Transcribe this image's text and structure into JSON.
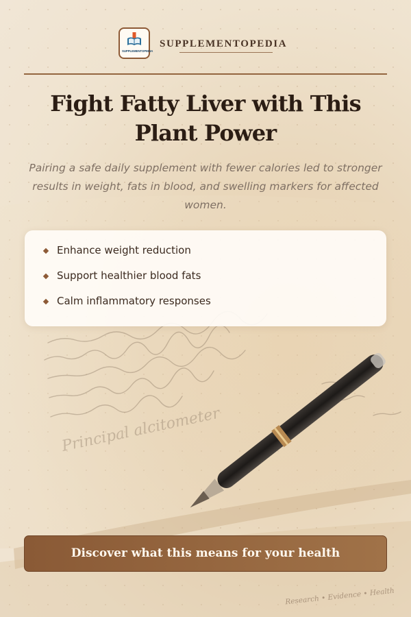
{
  "brand": {
    "name": "SUPPLEMENTOPEDIA",
    "logo_text": "SUPPLEMENTOPEDIA"
  },
  "headline": "Fight Fatty Liver with This Plant Power",
  "subtitle": "Pairing a safe daily supplement with fewer calories led to stronger results in weight, fats in blood, and swelling markers for affected women.",
  "benefits": [
    "Enhance weight reduction",
    "Support healthier blood fats",
    "Calm inflammatory responses"
  ],
  "cta_label": "Discover what this means for your health",
  "footer_tagline": "Research • Evidence • Health",
  "background_handwriting": [
    "Principal alcitometer"
  ],
  "colors": {
    "accent": "#8d5a36",
    "title": "#2b1d14",
    "cta_start": "#8a5a36",
    "cta_end": "#a07248"
  }
}
